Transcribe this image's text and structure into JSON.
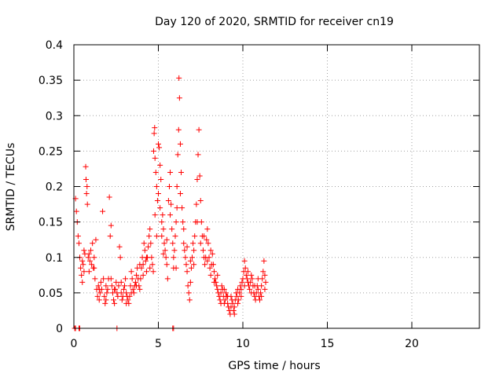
{
  "chart_data": {
    "type": "scatter",
    "title": "Day 120 of 2020, SRMTID for receiver cn19",
    "xlabel": "GPS time / hours",
    "ylabel": "SRMTID / TECUs",
    "xlim": [
      0,
      24
    ],
    "ylim": [
      0,
      0.4
    ],
    "x_ticks": [
      0,
      5,
      10,
      15,
      20
    ],
    "x_tick_labels": [
      "0",
      "5",
      "10",
      "15",
      "20"
    ],
    "y_ticks": [
      0,
      0.05,
      0.1,
      0.15,
      0.2,
      0.25,
      0.3,
      0.35,
      0.4
    ],
    "y_tick_labels": [
      "0",
      "0.05",
      "0.1",
      "0.15",
      "0.2",
      "0.25",
      "0.3",
      "0.35",
      "0.4"
    ],
    "grid": true,
    "marker": "+",
    "color": "#ff0000",
    "series": [
      {
        "name": "SRMTID",
        "points": [
          [
            0.05,
            0
          ],
          [
            0.1,
            0
          ],
          [
            0.3,
            0
          ],
          [
            0.35,
            0
          ],
          [
            2.55,
            0
          ],
          [
            5.85,
            0
          ],
          [
            5.9,
            0
          ],
          [
            0.1,
            0.183
          ],
          [
            0.15,
            0.165
          ],
          [
            0.2,
            0.15
          ],
          [
            0.25,
            0.13
          ],
          [
            0.3,
            0.12
          ],
          [
            0.35,
            0.1
          ],
          [
            0.4,
            0.085
          ],
          [
            0.45,
            0.075
          ],
          [
            0.5,
            0.065
          ],
          [
            0.55,
            0.09
          ],
          [
            0.6,
            0.11
          ],
          [
            0.65,
            0.105
          ],
          [
            0.7,
            0.228
          ],
          [
            0.72,
            0.21
          ],
          [
            0.75,
            0.19
          ],
          [
            0.78,
            0.2
          ],
          [
            0.8,
            0.175
          ],
          [
            0.85,
            0.1
          ],
          [
            0.9,
            0.08
          ],
          [
            0.95,
            0.095
          ],
          [
            1.0,
            0.11
          ],
          [
            1.05,
            0.09
          ],
          [
            1.1,
            0.12
          ],
          [
            1.15,
            0.085
          ],
          [
            1.2,
            0.1
          ],
          [
            1.25,
            0.07
          ],
          [
            1.3,
            0.125
          ],
          [
            1.35,
            0.055
          ],
          [
            1.4,
            0.045
          ],
          [
            1.45,
            0.06
          ],
          [
            1.5,
            0.04
          ],
          [
            1.55,
            0.05
          ],
          [
            1.6,
            0.065
          ],
          [
            1.65,
            0.055
          ],
          [
            1.7,
            0.165
          ],
          [
            1.75,
            0.07
          ],
          [
            1.8,
            0.045
          ],
          [
            1.85,
            0.035
          ],
          [
            1.9,
            0.06
          ],
          [
            1.95,
            0.05
          ],
          [
            2.0,
            0.055
          ],
          [
            2.05,
            0.07
          ],
          [
            2.1,
            0.185
          ],
          [
            2.15,
            0.13
          ],
          [
            2.2,
            0.07
          ],
          [
            2.25,
            0.06
          ],
          [
            2.3,
            0.05
          ],
          [
            2.35,
            0.04
          ],
          [
            2.4,
            0.035
          ],
          [
            2.45,
            0.055
          ],
          [
            2.5,
            0.065
          ],
          [
            2.55,
            0.05
          ],
          [
            2.6,
            0.045
          ],
          [
            2.65,
            0.06
          ],
          [
            2.7,
            0.115
          ],
          [
            2.75,
            0.1
          ],
          [
            2.8,
            0.05
          ],
          [
            2.85,
            0.04
          ],
          [
            2.9,
            0.045
          ],
          [
            2.95,
            0.055
          ],
          [
            3.0,
            0.06
          ],
          [
            3.05,
            0.07
          ],
          [
            3.1,
            0.05
          ],
          [
            3.15,
            0.045
          ],
          [
            3.2,
            0.04
          ],
          [
            3.25,
            0.035
          ],
          [
            3.3,
            0.045
          ],
          [
            3.35,
            0.06
          ],
          [
            3.4,
            0.08
          ],
          [
            3.45,
            0.07
          ],
          [
            3.5,
            0.055
          ],
          [
            3.55,
            0.05
          ],
          [
            3.6,
            0.06
          ],
          [
            3.65,
            0.065
          ],
          [
            3.7,
            0.075
          ],
          [
            3.75,
            0.085
          ],
          [
            3.8,
            0.07
          ],
          [
            3.85,
            0.06
          ],
          [
            3.9,
            0.055
          ],
          [
            3.95,
            0.07
          ],
          [
            4.0,
            0.085
          ],
          [
            4.05,
            0.1
          ],
          [
            4.1,
            0.09
          ],
          [
            4.15,
            0.12
          ],
          [
            4.2,
            0.11
          ],
          [
            4.25,
            0.095
          ],
          [
            4.3,
            0.08
          ],
          [
            4.35,
            0.1
          ],
          [
            4.4,
            0.115
          ],
          [
            4.45,
            0.13
          ],
          [
            4.5,
            0.14
          ],
          [
            4.55,
            0.12
          ],
          [
            4.6,
            0.1
          ],
          [
            4.65,
            0.09
          ],
          [
            4.7,
            0.08
          ],
          [
            4.72,
            0.25
          ],
          [
            4.75,
            0.275
          ],
          [
            4.78,
            0.283
          ],
          [
            4.8,
            0.24
          ],
          [
            4.85,
            0.22
          ],
          [
            4.9,
            0.2
          ],
          [
            4.95,
            0.18
          ],
          [
            5.0,
            0.26
          ],
          [
            5.05,
            0.255
          ],
          [
            5.1,
            0.23
          ],
          [
            5.15,
            0.21
          ],
          [
            5.2,
            0.15
          ],
          [
            5.25,
            0.16
          ],
          [
            5.3,
            0.14
          ],
          [
            5.35,
            0.12
          ],
          [
            5.4,
            0.11
          ],
          [
            5.45,
            0.1
          ],
          [
            5.5,
            0.09
          ],
          [
            5.55,
            0.07
          ],
          [
            5.6,
            0.18
          ],
          [
            5.65,
            0.2
          ],
          [
            5.7,
            0.22
          ],
          [
            5.75,
            0.175
          ],
          [
            5.8,
            0.14
          ],
          [
            5.85,
            0.12
          ],
          [
            5.9,
            0.1
          ],
          [
            5.95,
            0.11
          ],
          [
            6.0,
            0.13
          ],
          [
            6.05,
            0.15
          ],
          [
            6.1,
            0.2
          ],
          [
            6.15,
            0.245
          ],
          [
            6.2,
            0.28
          ],
          [
            6.22,
            0.353
          ],
          [
            6.25,
            0.325
          ],
          [
            6.3,
            0.26
          ],
          [
            6.35,
            0.22
          ],
          [
            6.4,
            0.17
          ],
          [
            6.45,
            0.15
          ],
          [
            6.5,
            0.12
          ],
          [
            6.55,
            0.11
          ],
          [
            6.6,
            0.1
          ],
          [
            6.65,
            0.09
          ],
          [
            6.7,
            0.08
          ],
          [
            6.75,
            0.06
          ],
          [
            6.8,
            0.05
          ],
          [
            6.85,
            0.04
          ],
          [
            6.9,
            0.065
          ],
          [
            6.95,
            0.085
          ],
          [
            7.0,
            0.1
          ],
          [
            7.05,
            0.12
          ],
          [
            7.1,
            0.11
          ],
          [
            7.15,
            0.13
          ],
          [
            7.2,
            0.15
          ],
          [
            7.25,
            0.175
          ],
          [
            7.3,
            0.21
          ],
          [
            7.35,
            0.245
          ],
          [
            7.4,
            0.28
          ],
          [
            7.45,
            0.215
          ],
          [
            7.5,
            0.18
          ],
          [
            7.55,
            0.15
          ],
          [
            7.6,
            0.13
          ],
          [
            7.65,
            0.11
          ],
          [
            7.7,
            0.1
          ],
          [
            7.75,
            0.09
          ],
          [
            7.8,
            0.1
          ],
          [
            7.85,
            0.125
          ],
          [
            7.9,
            0.14
          ],
          [
            7.95,
            0.12
          ],
          [
            8.0,
            0.1
          ],
          [
            8.05,
            0.085
          ],
          [
            8.1,
            0.075
          ],
          [
            8.15,
            0.09
          ],
          [
            8.2,
            0.105
          ],
          [
            8.25,
            0.09
          ],
          [
            8.3,
            0.08
          ],
          [
            8.35,
            0.07
          ],
          [
            8.4,
            0.065
          ],
          [
            8.45,
            0.06
          ],
          [
            8.5,
            0.055
          ],
          [
            8.55,
            0.05
          ],
          [
            8.6,
            0.045
          ],
          [
            8.65,
            0.04
          ],
          [
            8.7,
            0.05
          ],
          [
            8.75,
            0.06
          ],
          [
            8.8,
            0.055
          ],
          [
            8.85,
            0.045
          ],
          [
            8.9,
            0.035
          ],
          [
            8.95,
            0.04
          ],
          [
            9.0,
            0.05
          ],
          [
            9.05,
            0.045
          ],
          [
            9.1,
            0.035
          ],
          [
            9.15,
            0.03
          ],
          [
            9.2,
            0.025
          ],
          [
            9.25,
            0.02
          ],
          [
            9.3,
            0.03
          ],
          [
            9.35,
            0.04
          ],
          [
            9.4,
            0.035
          ],
          [
            9.45,
            0.025
          ],
          [
            9.5,
            0.03
          ],
          [
            9.55,
            0.04
          ],
          [
            9.6,
            0.05
          ],
          [
            9.65,
            0.045
          ],
          [
            9.7,
            0.035
          ],
          [
            9.75,
            0.04
          ],
          [
            9.8,
            0.05
          ],
          [
            9.85,
            0.06
          ],
          [
            9.9,
            0.055
          ],
          [
            9.95,
            0.065
          ],
          [
            10.0,
            0.07
          ],
          [
            10.05,
            0.08
          ],
          [
            10.1,
            0.095
          ],
          [
            10.15,
            0.085
          ],
          [
            10.2,
            0.075
          ],
          [
            10.25,
            0.07
          ],
          [
            10.3,
            0.065
          ],
          [
            10.35,
            0.06
          ],
          [
            10.4,
            0.055
          ],
          [
            10.45,
            0.065
          ],
          [
            10.5,
            0.075
          ],
          [
            10.55,
            0.07
          ],
          [
            10.6,
            0.06
          ],
          [
            10.65,
            0.05
          ],
          [
            10.7,
            0.045
          ],
          [
            10.75,
            0.04
          ],
          [
            10.8,
            0.05
          ],
          [
            10.85,
            0.06
          ],
          [
            10.9,
            0.055
          ],
          [
            10.95,
            0.045
          ],
          [
            11.0,
            0.04
          ],
          [
            11.05,
            0.05
          ],
          [
            11.1,
            0.06
          ],
          [
            11.15,
            0.07
          ],
          [
            11.2,
            0.08
          ],
          [
            11.25,
            0.095
          ],
          [
            11.3,
            0.075
          ],
          [
            11.35,
            0.065
          ],
          [
            0.5,
            0.095
          ],
          [
            0.6,
            0.08
          ],
          [
            0.9,
            0.105
          ],
          [
            1.2,
            0.085
          ],
          [
            1.5,
            0.055
          ],
          [
            1.9,
            0.04
          ],
          [
            2.2,
            0.145
          ],
          [
            2.4,
            0.055
          ],
          [
            2.8,
            0.065
          ],
          [
            3.1,
            0.035
          ],
          [
            3.4,
            0.05
          ],
          [
            3.7,
            0.06
          ],
          [
            3.9,
            0.09
          ],
          [
            4.1,
            0.075
          ],
          [
            4.3,
            0.1
          ],
          [
            4.5,
            0.085
          ],
          [
            4.8,
            0.16
          ],
          [
            4.9,
            0.13
          ],
          [
            5.0,
            0.19
          ],
          [
            5.1,
            0.17
          ],
          [
            5.2,
            0.13
          ],
          [
            5.3,
            0.105
          ],
          [
            5.5,
            0.125
          ],
          [
            5.7,
            0.16
          ],
          [
            5.9,
            0.085
          ],
          [
            6.05,
            0.085
          ],
          [
            6.1,
            0.17
          ],
          [
            6.3,
            0.19
          ],
          [
            6.5,
            0.14
          ],
          [
            6.7,
            0.115
          ],
          [
            6.9,
            0.095
          ],
          [
            7.1,
            0.09
          ],
          [
            7.3,
            0.15
          ],
          [
            7.5,
            0.12
          ],
          [
            7.7,
            0.13
          ],
          [
            7.9,
            0.095
          ],
          [
            8.1,
            0.11
          ],
          [
            8.3,
            0.065
          ],
          [
            8.5,
            0.075
          ],
          [
            8.7,
            0.035
          ],
          [
            8.9,
            0.055
          ],
          [
            9.1,
            0.045
          ],
          [
            9.3,
            0.045
          ],
          [
            9.5,
            0.02
          ],
          [
            9.7,
            0.055
          ],
          [
            9.9,
            0.045
          ],
          [
            10.1,
            0.06
          ],
          [
            10.3,
            0.08
          ],
          [
            10.5,
            0.05
          ],
          [
            10.7,
            0.06
          ],
          [
            10.9,
            0.07
          ],
          [
            11.1,
            0.045
          ],
          [
            11.3,
            0.055
          ]
        ]
      }
    ]
  }
}
